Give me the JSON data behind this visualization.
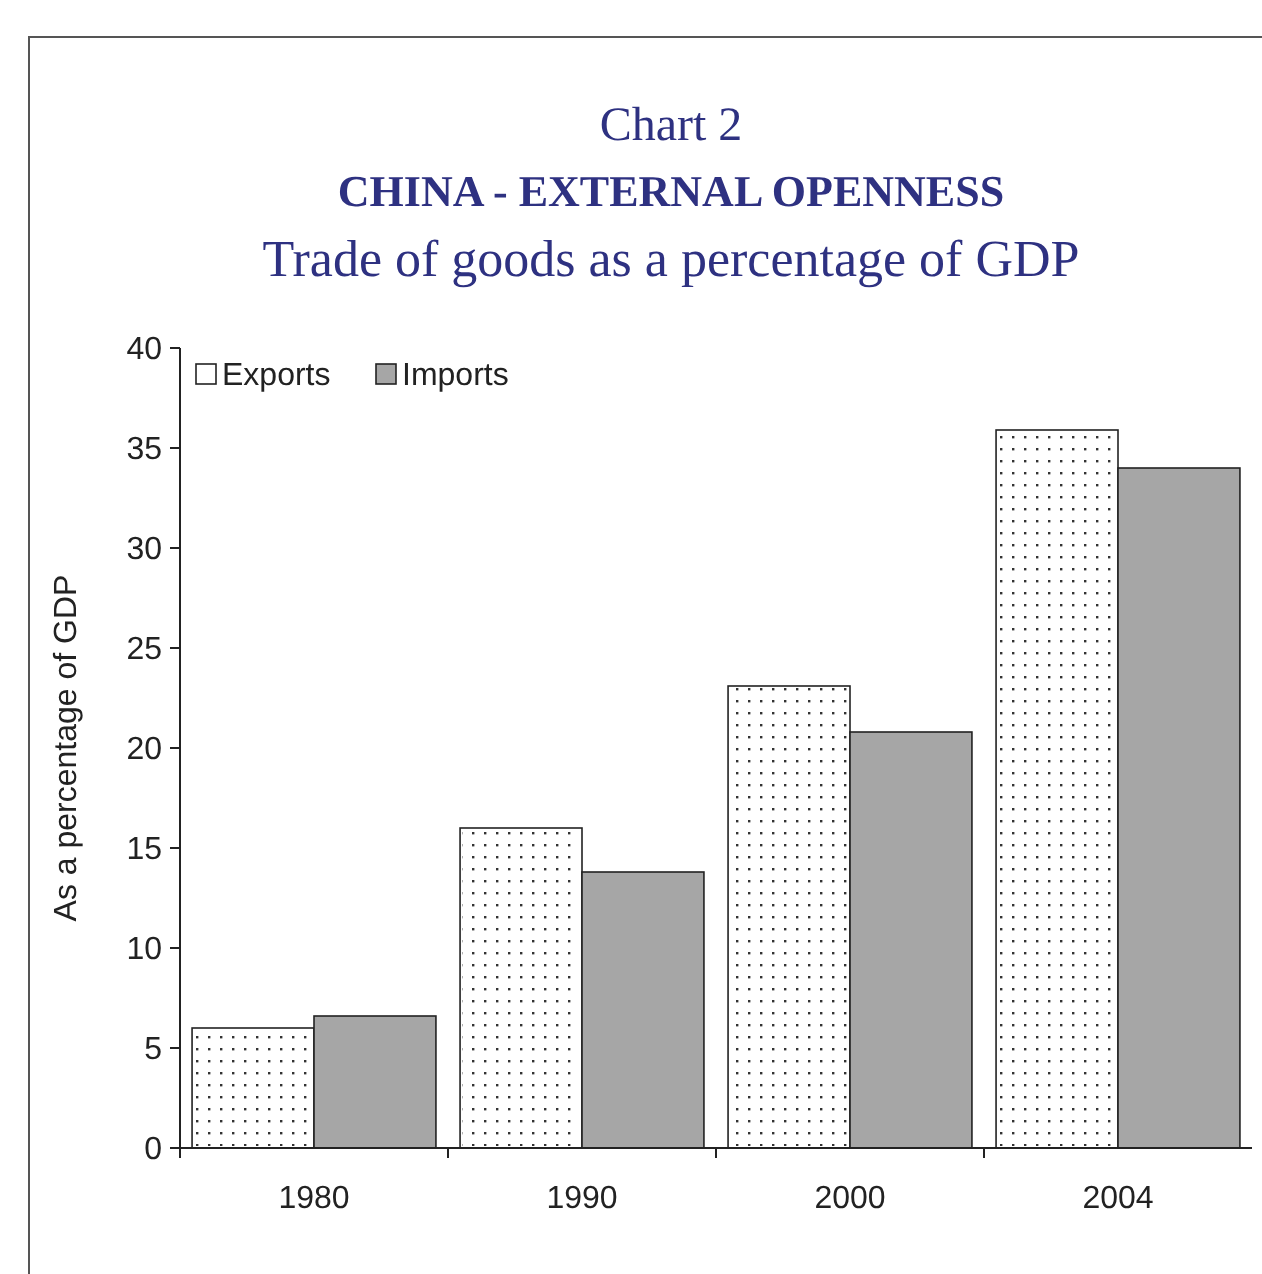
{
  "chart_data": {
    "type": "bar",
    "title": "CHINA - EXTERNAL OPENNESS",
    "subtitle": "Trade of goods as a percentage of GDP",
    "annotations": [
      "Chart 2"
    ],
    "ylabel": "As a percentage of GDP",
    "categories": [
      "1980",
      "1990",
      "2000",
      "2004"
    ],
    "series": [
      {
        "name": "Exports",
        "color": "#ffffff",
        "values": [
          6.0,
          16.0,
          23.1,
          35.9
        ]
      },
      {
        "name": "Imports",
        "color": "#a6a6a6",
        "values": [
          6.6,
          13.8,
          20.8,
          34.0
        ]
      }
    ],
    "ylim": [
      0,
      40
    ],
    "yticks": [
      0,
      5,
      10,
      15,
      20,
      25,
      30,
      35,
      40
    ],
    "legend": "top left",
    "grid": false
  }
}
